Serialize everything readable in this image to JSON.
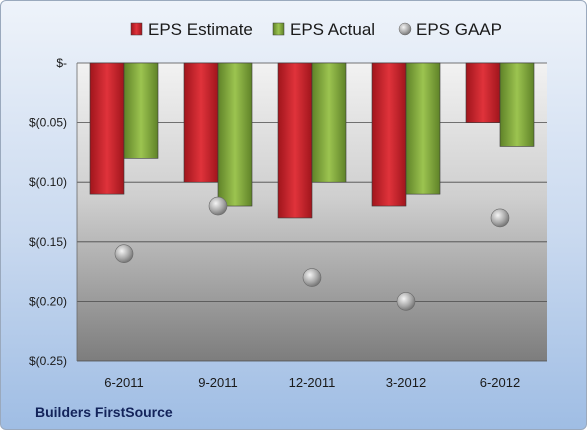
{
  "chart_data": {
    "type": "bar",
    "title": "",
    "xlabel": "",
    "ylabel": "",
    "categories": [
      "6-2011",
      "9-2011",
      "12-2011",
      "3-2012",
      "6-2012"
    ],
    "series": [
      {
        "name": "EPS Estimate",
        "kind": "bar",
        "color": "#c8232b",
        "values": [
          -0.11,
          -0.1,
          -0.13,
          -0.12,
          -0.05
        ]
      },
      {
        "name": "EPS Actual",
        "kind": "bar",
        "color": "#7fa63a",
        "values": [
          -0.08,
          -0.12,
          -0.1,
          -0.11,
          -0.07
        ]
      },
      {
        "name": "EPS GAAP",
        "kind": "point",
        "color": "#9a9a9a",
        "values": [
          -0.16,
          -0.12,
          -0.18,
          -0.2,
          -0.13
        ]
      }
    ],
    "ylim": [
      -0.25,
      0
    ],
    "yticks": [
      0,
      -0.05,
      -0.1,
      -0.15,
      -0.2,
      -0.25
    ],
    "ytick_labels": [
      "$-",
      "$(0.05)",
      "$(0.10)",
      "$(0.15)",
      "$(0.20)",
      "$(0.25)"
    ],
    "grid": true,
    "legend": "top"
  },
  "footer": {
    "company": "Builders FirstSource"
  }
}
